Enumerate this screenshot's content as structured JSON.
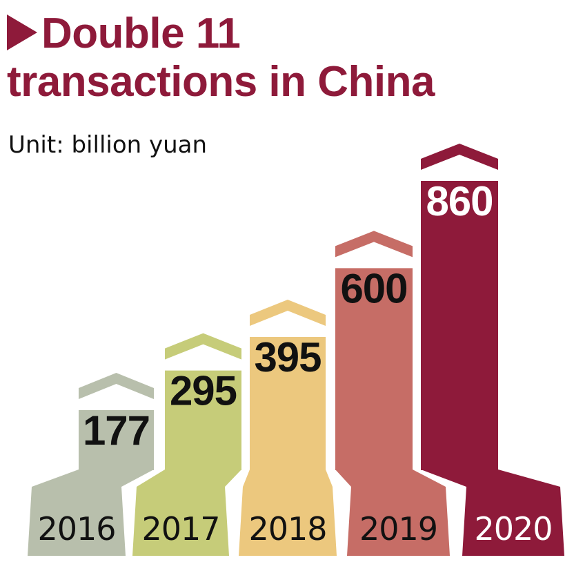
{
  "chart_data": {
    "type": "bar",
    "title": "Double 11 transactions in China",
    "title_lines": [
      "Double 11",
      "transactions in China"
    ],
    "subtitle": "Unit: billion yuan",
    "categories": [
      "2016",
      "2017",
      "2018",
      "2019",
      "2020"
    ],
    "values": [
      177,
      295,
      395,
      600,
      860
    ],
    "value_labels": [
      "177",
      "295",
      "395",
      "600",
      "860"
    ],
    "colors": [
      "#b8bfac",
      "#c6cc79",
      "#ecc87e",
      "#c66d66",
      "#8e1a3a"
    ],
    "value_label_colors": [
      "#111111",
      "#111111",
      "#111111",
      "#111111",
      "#ffffff"
    ],
    "year_label_colors": [
      "#111111",
      "#111111",
      "#111111",
      "#111111",
      "#ffffff"
    ],
    "title_color": "#8e1a3a",
    "legend": "none",
    "grid": false
  }
}
